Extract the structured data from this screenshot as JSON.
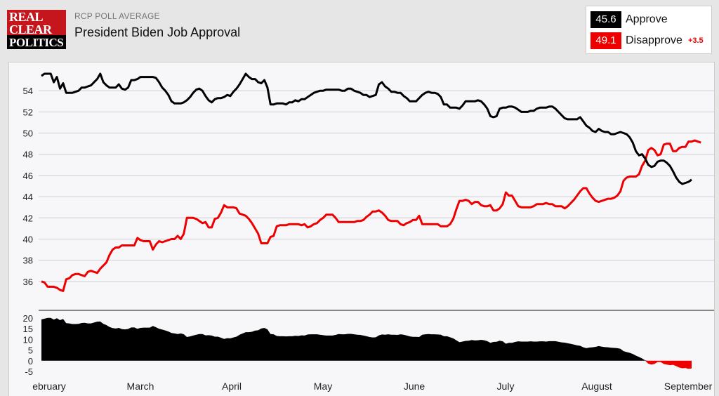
{
  "header": {
    "logo": [
      "REAL",
      "CLEAR",
      "POLITICS"
    ],
    "kicker": "RCP POLL AVERAGE",
    "title": "President Biden Job Approval"
  },
  "legend": {
    "approve": {
      "value": "45.6",
      "label": "Approve"
    },
    "disapprove": {
      "value": "49.1",
      "label": "Disapprove",
      "spread": "+3.5"
    }
  },
  "colors": {
    "approve": "#000000",
    "disapprove": "#ee0000",
    "grid": "#cfcfd6"
  },
  "chart_data": [
    {
      "type": "line",
      "ylim": [
        34,
        56
      ],
      "yticks": [
        36,
        38,
        40,
        42,
        44,
        46,
        48,
        50,
        52,
        54
      ],
      "month_ticks": [
        "ebruary",
        "March",
        "April",
        "May",
        "June",
        "July",
        "August",
        "September"
      ],
      "series": [
        {
          "name": "Approve",
          "values": [
            55.4,
            55.6,
            55.6,
            55.6,
            54.8,
            55.3,
            54.2,
            54.7,
            53.8,
            53.8,
            53.8,
            53.9,
            54.0,
            54.3,
            54.3,
            54.4,
            54.5,
            54.8,
            55.1,
            55.6,
            54.8,
            54.5,
            54.3,
            54.3,
            54.3,
            54.6,
            54.2,
            54.1,
            54.3,
            55.0,
            55.0,
            55.1,
            55.3,
            55.3,
            55.3,
            55.3,
            55.3,
            55.2,
            54.8,
            54.3,
            54.0,
            53.6,
            53.0,
            52.8,
            52.8,
            52.8,
            52.9,
            53.1,
            53.4,
            53.8,
            54.1,
            54.2,
            54.0,
            53.5,
            53.1,
            52.9,
            53.2,
            53.3,
            53.3,
            53.4,
            53.6,
            53.5,
            53.9,
            54.2,
            54.6,
            55.1,
            55.6,
            55.3,
            55.1,
            55.1,
            54.8,
            54.7,
            55.0,
            54.3,
            52.7,
            52.7,
            52.8,
            52.8,
            52.8,
            52.7,
            52.9,
            52.9,
            53.1,
            53.0,
            53.2,
            53.2,
            53.4,
            53.6,
            53.8,
            53.9,
            54.0,
            54.0,
            54.1,
            54.1,
            54.1,
            54.1,
            54.1,
            54.0,
            54.0,
            54.2,
            54.2,
            54.0,
            53.9,
            53.8,
            53.6,
            53.6,
            53.4,
            53.5,
            53.6,
            54.6,
            54.8,
            54.4,
            54.2,
            53.9,
            53.9,
            53.8,
            53.8,
            53.5,
            53.3,
            53.0,
            53.0,
            53.0,
            53.3,
            53.6,
            53.8,
            53.9,
            53.8,
            53.8,
            53.7,
            53.4,
            52.7,
            52.7,
            52.4,
            52.4,
            52.4,
            52.3,
            52.6,
            53.0,
            53.0,
            53.0,
            53.0,
            53.1,
            53.0,
            52.7,
            52.3,
            51.6,
            51.5,
            51.6,
            52.3,
            52.4,
            52.4,
            52.5,
            52.5,
            52.4,
            52.2,
            52.0,
            52.0,
            52.0,
            52.1,
            52.1,
            52.3,
            52.4,
            52.4,
            52.4,
            52.5,
            52.5,
            52.3,
            52.0,
            51.7,
            51.4,
            51.3,
            51.3,
            51.3,
            51.3,
            51.5,
            51.1,
            50.7,
            50.5,
            50.2,
            50.1,
            50.4,
            50.2,
            50.1,
            50.1,
            49.9,
            49.9,
            50.0,
            50.1,
            50.0,
            49.9,
            49.6,
            49.1,
            48.3,
            47.9,
            48.0,
            47.6,
            47.0,
            46.8,
            46.9,
            47.3,
            47.4,
            47.4,
            47.2,
            46.9,
            46.4,
            45.8,
            45.4,
            45.2,
            45.3,
            45.4,
            45.6
          ]
        },
        {
          "name": "Disapprove",
          "values": [
            36.0,
            35.9,
            35.5,
            35.5,
            35.5,
            35.4,
            35.2,
            35.1,
            36.2,
            36.3,
            36.6,
            36.7,
            36.7,
            36.6,
            36.5,
            36.9,
            37.0,
            36.9,
            36.8,
            37.2,
            37.5,
            37.8,
            38.5,
            39.0,
            39.2,
            39.2,
            39.4,
            39.4,
            39.4,
            39.4,
            39.4,
            40.1,
            39.9,
            39.8,
            39.8,
            39.8,
            39.0,
            39.5,
            39.8,
            39.7,
            39.8,
            39.9,
            40.0,
            40.0,
            40.3,
            40.0,
            40.5,
            42.0,
            42.0,
            42.0,
            41.9,
            41.7,
            41.5,
            41.6,
            41.1,
            41.1,
            41.9,
            42.0,
            42.5,
            43.2,
            43.0,
            43.0,
            43.0,
            42.9,
            42.4,
            42.3,
            42.2,
            41.9,
            41.5,
            41.0,
            40.5,
            39.6,
            39.6,
            39.6,
            40.2,
            40.3,
            41.2,
            41.3,
            41.3,
            41.3,
            41.4,
            41.4,
            41.4,
            41.4,
            41.3,
            41.4,
            41.1,
            41.2,
            41.4,
            41.5,
            41.8,
            42.0,
            42.3,
            42.3,
            42.3,
            42.0,
            41.6,
            41.6,
            41.6,
            41.6,
            41.6,
            41.6,
            41.7,
            41.7,
            41.8,
            42.1,
            42.3,
            42.6,
            42.6,
            42.7,
            42.5,
            42.2,
            41.8,
            41.7,
            41.7,
            41.7,
            41.4,
            41.3,
            41.5,
            41.6,
            41.8,
            41.8,
            42.2,
            41.4,
            41.4,
            41.4,
            41.4,
            41.4,
            41.4,
            41.2,
            41.2,
            41.2,
            41.4,
            41.9,
            42.8,
            43.6,
            43.6,
            43.7,
            43.6,
            43.3,
            43.5,
            43.5,
            43.2,
            43.1,
            43.1,
            43.2,
            42.7,
            42.7,
            42.9,
            43.3,
            44.4,
            44.1,
            44.1,
            43.6,
            43.1,
            43.0,
            43.0,
            43.0,
            43.0,
            43.1,
            43.3,
            43.3,
            43.3,
            43.4,
            43.3,
            43.3,
            43.1,
            43.1,
            43.1,
            42.9,
            43.1,
            43.4,
            43.7,
            44.1,
            44.5,
            44.8,
            44.8,
            44.3,
            43.9,
            43.6,
            43.5,
            43.6,
            43.7,
            43.8,
            43.8,
            43.9,
            44.1,
            44.5,
            45.5,
            45.8,
            45.9,
            45.9,
            45.9,
            46.1,
            46.9,
            47.4,
            48.4,
            48.6,
            48.4,
            47.9,
            48.0,
            48.9,
            49.0,
            49.0,
            48.3,
            48.3,
            48.6,
            48.7,
            48.7,
            49.2,
            49.2,
            49.3,
            49.2,
            49.1
          ]
        }
      ]
    },
    {
      "type": "area",
      "series_name": "Spread",
      "ylim": [
        -5,
        20
      ],
      "yticks": [
        -5,
        0,
        5,
        10,
        15,
        20
      ]
    }
  ]
}
